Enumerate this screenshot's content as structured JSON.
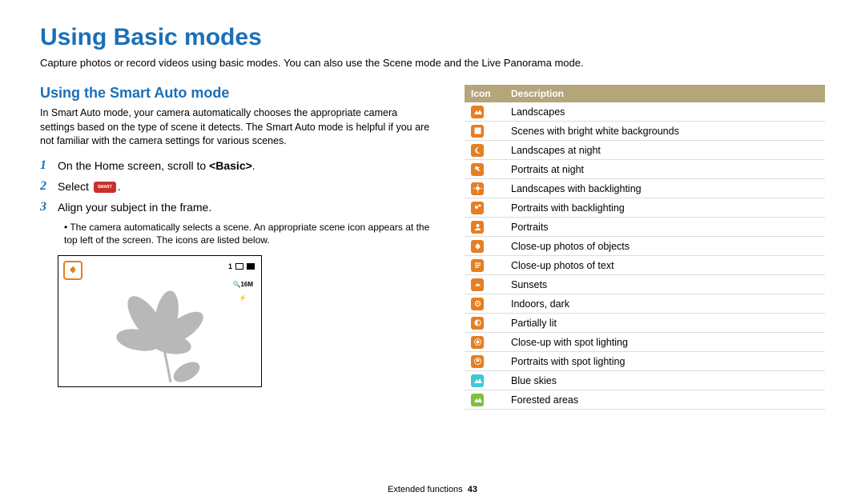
{
  "page_title": "Using Basic modes",
  "intro": "Capture photos or record videos using basic modes. You can also use the Scene mode and the Live Panorama mode.",
  "section_title": "Using the Smart Auto mode",
  "section_desc": "In Smart Auto mode, your camera automatically chooses the appropriate camera settings based on the type of scene it detects. The Smart Auto mode is helpful if you are not familiar with the camera settings for various scenes.",
  "steps": [
    {
      "num": "1",
      "text_pre": "On the Home screen, scroll to ",
      "bold": "<Basic>",
      "text_post": "."
    },
    {
      "num": "2",
      "text_pre": "Select ",
      "has_smart_icon": true,
      "text_post": "."
    },
    {
      "num": "3",
      "text_pre": "Align your subject in the frame.",
      "text_post": ""
    }
  ],
  "bullet_note": "The camera automatically selects a scene. An appropriate scene icon appears at the top left of the screen. The icons are listed below.",
  "preview_top_right_text": "1",
  "preview_side_text1": "16M",
  "table_header": {
    "icon": "Icon",
    "desc": "Description"
  },
  "icon_rows": [
    {
      "color": "#e67e22",
      "glyph": "landscape",
      "desc": "Landscapes"
    },
    {
      "color": "#e67e22",
      "glyph": "white-bg",
      "desc": "Scenes with bright white backgrounds"
    },
    {
      "color": "#e67e22",
      "glyph": "night",
      "desc": "Landscapes at night"
    },
    {
      "color": "#e67e22",
      "glyph": "portrait-night",
      "desc": "Portraits at night"
    },
    {
      "color": "#e67e22",
      "glyph": "backlight",
      "desc": "Landscapes with backlighting"
    },
    {
      "color": "#e67e22",
      "glyph": "portrait-backlight",
      "desc": "Portraits with backlighting"
    },
    {
      "color": "#e67e22",
      "glyph": "portrait",
      "desc": "Portraits"
    },
    {
      "color": "#e67e22",
      "glyph": "macro",
      "desc": "Close-up photos of objects"
    },
    {
      "color": "#e67e22",
      "glyph": "text",
      "desc": "Close-up photos of text"
    },
    {
      "color": "#e67e22",
      "glyph": "sunset",
      "desc": "Sunsets"
    },
    {
      "color": "#e67e22",
      "glyph": "indoor",
      "desc": "Indoors, dark"
    },
    {
      "color": "#e67e22",
      "glyph": "partial",
      "desc": "Partially lit"
    },
    {
      "color": "#e67e22",
      "glyph": "spot",
      "desc": "Close-up with spot lighting"
    },
    {
      "color": "#e67e22",
      "glyph": "portrait-spot",
      "desc": "Portraits with spot lighting"
    },
    {
      "color": "#3fc8d6",
      "glyph": "sky",
      "desc": "Blue skies"
    },
    {
      "color": "#7fbf3f",
      "glyph": "forest",
      "desc": "Forested areas"
    }
  ],
  "footer_label": "Extended functions",
  "footer_page": "43"
}
